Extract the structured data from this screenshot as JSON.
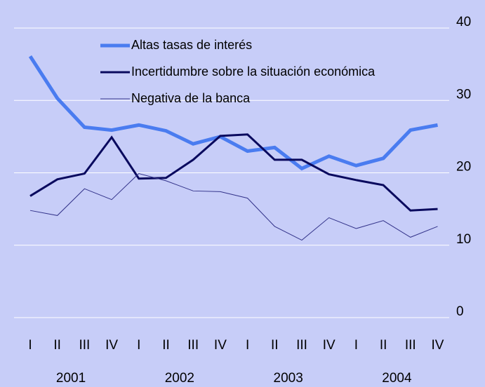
{
  "chart_data": {
    "type": "line",
    "categories": [
      "I",
      "II",
      "III",
      "IV",
      "I",
      "II",
      "III",
      "IV",
      "I",
      "II",
      "III",
      "IV",
      "I",
      "II",
      "III",
      "IV"
    ],
    "groups": [
      "2001",
      "2002",
      "2003",
      "2004"
    ],
    "series": [
      {
        "name": "Altas tasas de interés",
        "color": "#4a7cf0",
        "values": [
          36.1,
          30.3,
          26.3,
          25.9,
          26.6,
          25.8,
          24.0,
          25.0,
          23.0,
          23.5,
          20.6,
          22.3,
          21.0,
          22.0,
          25.9,
          26.6
        ]
      },
      {
        "name": "Incertidumbre sobre la situación económica",
        "color": "#0a0a5e",
        "values": [
          16.8,
          19.1,
          19.9,
          24.9,
          19.2,
          19.3,
          21.8,
          25.1,
          25.3,
          21.8,
          21.8,
          19.8,
          19.0,
          18.3,
          14.8,
          15.0
        ]
      },
      {
        "name": "Negativa de la banca",
        "color": "#33338a",
        "values": [
          14.8,
          14.1,
          17.8,
          16.3,
          19.9,
          18.9,
          17.5,
          17.4,
          16.5,
          12.6,
          10.7,
          13.8,
          12.3,
          13.4,
          11.1,
          12.6
        ]
      }
    ],
    "ylim": [
      0,
      40
    ],
    "yticks": [
      0,
      10,
      20,
      30,
      40
    ],
    "grid": true,
    "y_axis_side": "right",
    "legend": "upper-left"
  }
}
